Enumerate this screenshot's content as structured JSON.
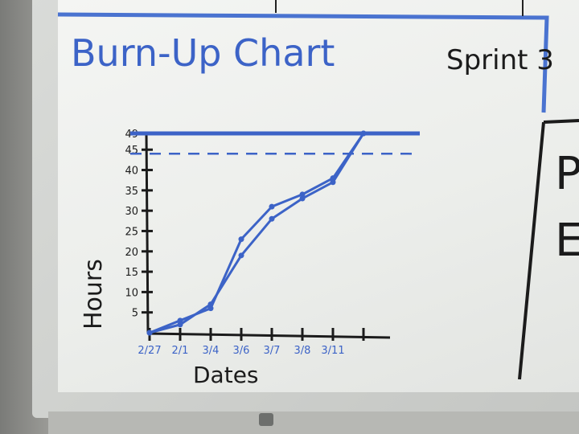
{
  "chart_data": {
    "type": "line",
    "title": "Burn-Up Chart",
    "subtitle": "Sprint 3",
    "xlabel": "Dates",
    "ylabel": "Hours",
    "categories": [
      "2/27",
      "2/1",
      "3/4",
      "3/6",
      "3/7",
      "3/8",
      "3/11",
      ""
    ],
    "ytick_labels": [
      "5",
      "10",
      "15",
      "20",
      "25",
      "30",
      "35",
      "40",
      "45",
      "49"
    ],
    "ylim": [
      0,
      49
    ],
    "scope_value": 49,
    "target_value": 44,
    "series": [
      {
        "values": [
          0,
          3,
          6,
          23,
          31,
          34,
          38,
          49
        ]
      },
      {
        "values": [
          0,
          2,
          7,
          19,
          28,
          33,
          37,
          49
        ]
      }
    ],
    "colors": {
      "ink": "#3c63c7",
      "dark_ink": "#1b1b1b"
    }
  },
  "side_panel": {
    "glyph_top": "P",
    "glyph_bottom": "E"
  }
}
